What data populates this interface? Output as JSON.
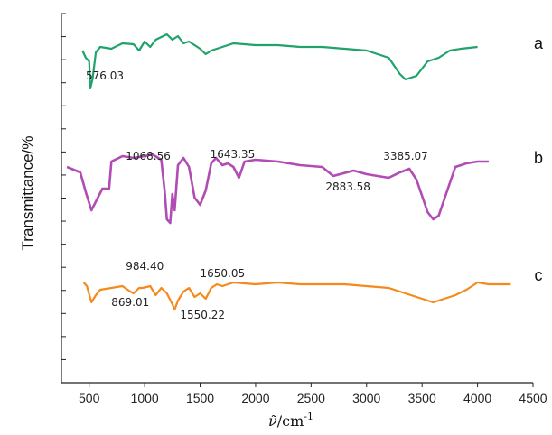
{
  "chart_data": {
    "type": "line",
    "xlabel_main": "ν̃",
    "xlabel_unit": "/cm",
    "xlabel_exp": "-1",
    "ylabel": "Transmittance/%",
    "xlim": [
      250,
      4500
    ],
    "xticks": [
      500,
      1000,
      1500,
      2000,
      2500,
      3000,
      3500,
      4000,
      4500
    ],
    "grid": false,
    "series": [
      {
        "name": "a",
        "color": "#1fa36a",
        "offset": 58,
        "points": [
          [
            440,
            2
          ],
          [
            470,
            -6
          ],
          [
            500,
            -10
          ],
          [
            510,
            -40
          ],
          [
            530,
            -30
          ],
          [
            560,
            0
          ],
          [
            600,
            6
          ],
          [
            700,
            4
          ],
          [
            800,
            10
          ],
          [
            900,
            9
          ],
          [
            950,
            2
          ],
          [
            1000,
            12
          ],
          [
            1050,
            6
          ],
          [
            1100,
            14
          ],
          [
            1200,
            20
          ],
          [
            1250,
            14
          ],
          [
            1300,
            18
          ],
          [
            1350,
            10
          ],
          [
            1400,
            12
          ],
          [
            1500,
            4
          ],
          [
            1550,
            -2
          ],
          [
            1600,
            2
          ],
          [
            1700,
            6
          ],
          [
            1800,
            10
          ],
          [
            2000,
            8
          ],
          [
            2200,
            8
          ],
          [
            2400,
            6
          ],
          [
            2600,
            6
          ],
          [
            2800,
            4
          ],
          [
            3000,
            2
          ],
          [
            3200,
            -6
          ],
          [
            3300,
            -24
          ],
          [
            3350,
            -30
          ],
          [
            3450,
            -26
          ],
          [
            3550,
            -10
          ],
          [
            3650,
            -6
          ],
          [
            3750,
            2
          ],
          [
            3850,
            4
          ],
          [
            4000,
            6
          ]
        ]
      },
      {
        "name": "b",
        "color": "#b04cb3",
        "offset": 185,
        "points": [
          [
            300,
            0
          ],
          [
            420,
            -6
          ],
          [
            470,
            -28
          ],
          [
            520,
            -48
          ],
          [
            570,
            -36
          ],
          [
            620,
            -24
          ],
          [
            680,
            -24
          ],
          [
            700,
            6
          ],
          [
            800,
            12
          ],
          [
            900,
            10
          ],
          [
            1000,
            12
          ],
          [
            1068,
            14
          ],
          [
            1150,
            8
          ],
          [
            1180,
            -26
          ],
          [
            1200,
            -58
          ],
          [
            1230,
            -62
          ],
          [
            1250,
            -30
          ],
          [
            1270,
            -48
          ],
          [
            1300,
            2
          ],
          [
            1350,
            10
          ],
          [
            1400,
            0
          ],
          [
            1450,
            -34
          ],
          [
            1500,
            -42
          ],
          [
            1550,
            -26
          ],
          [
            1600,
            4
          ],
          [
            1643,
            10
          ],
          [
            1700,
            2
          ],
          [
            1750,
            4
          ],
          [
            1800,
            0
          ],
          [
            1850,
            -12
          ],
          [
            1900,
            6
          ],
          [
            2000,
            8
          ],
          [
            2200,
            6
          ],
          [
            2400,
            2
          ],
          [
            2600,
            0
          ],
          [
            2700,
            -10
          ],
          [
            2883,
            -4
          ],
          [
            3000,
            -8
          ],
          [
            3100,
            -10
          ],
          [
            3200,
            -12
          ],
          [
            3300,
            -6
          ],
          [
            3385,
            -2
          ],
          [
            3450,
            -14
          ],
          [
            3550,
            -50
          ],
          [
            3600,
            -58
          ],
          [
            3650,
            -54
          ],
          [
            3700,
            -36
          ],
          [
            3800,
            0
          ],
          [
            3900,
            4
          ],
          [
            4000,
            6
          ],
          [
            4100,
            6
          ]
        ]
      },
      {
        "name": "c",
        "color": "#f5891c",
        "offset": 315,
        "points": [
          [
            450,
            2
          ],
          [
            480,
            -2
          ],
          [
            520,
            -20
          ],
          [
            560,
            -12
          ],
          [
            600,
            -6
          ],
          [
            700,
            -4
          ],
          [
            800,
            -2
          ],
          [
            870,
            -8
          ],
          [
            900,
            -10
          ],
          [
            950,
            -4
          ],
          [
            984,
            -4
          ],
          [
            1050,
            -2
          ],
          [
            1100,
            -12
          ],
          [
            1150,
            -4
          ],
          [
            1200,
            -10
          ],
          [
            1250,
            -22
          ],
          [
            1270,
            -28
          ],
          [
            1300,
            -18
          ],
          [
            1350,
            -8
          ],
          [
            1400,
            -4
          ],
          [
            1450,
            -14
          ],
          [
            1500,
            -10
          ],
          [
            1550,
            -16
          ],
          [
            1600,
            -4
          ],
          [
            1650,
            0
          ],
          [
            1700,
            -2
          ],
          [
            1800,
            2
          ],
          [
            2000,
            0
          ],
          [
            2200,
            2
          ],
          [
            2400,
            0
          ],
          [
            2600,
            0
          ],
          [
            2800,
            0
          ],
          [
            3000,
            -2
          ],
          [
            3200,
            -4
          ],
          [
            3400,
            -12
          ],
          [
            3600,
            -20
          ],
          [
            3800,
            -12
          ],
          [
            3900,
            -6
          ],
          [
            4000,
            2
          ],
          [
            4100,
            0
          ],
          [
            4300,
            0
          ]
        ]
      }
    ],
    "annotations": [
      {
        "text": "576.03",
        "x": 470,
        "series": "a",
        "dy": -26
      },
      {
        "text": "1068.56",
        "x": 830,
        "series": "b",
        "dy": 12
      },
      {
        "text": "1643.35",
        "x": 1590,
        "series": "b",
        "dy": 14
      },
      {
        "text": "2883.58",
        "x": 2630,
        "series": "b",
        "dy": -22
      },
      {
        "text": "3385.07",
        "x": 3150,
        "series": "b",
        "dy": 12
      },
      {
        "text": "984.40",
        "x": 830,
        "series": "c",
        "dy": 20
      },
      {
        "text": "1650.05",
        "x": 1500,
        "series": "c",
        "dy": 12
      },
      {
        "text": "869.01",
        "x": 700,
        "series": "c",
        "dy": -20
      },
      {
        "text": "1550.22",
        "x": 1320,
        "series": "c",
        "dy": -34
      }
    ]
  }
}
